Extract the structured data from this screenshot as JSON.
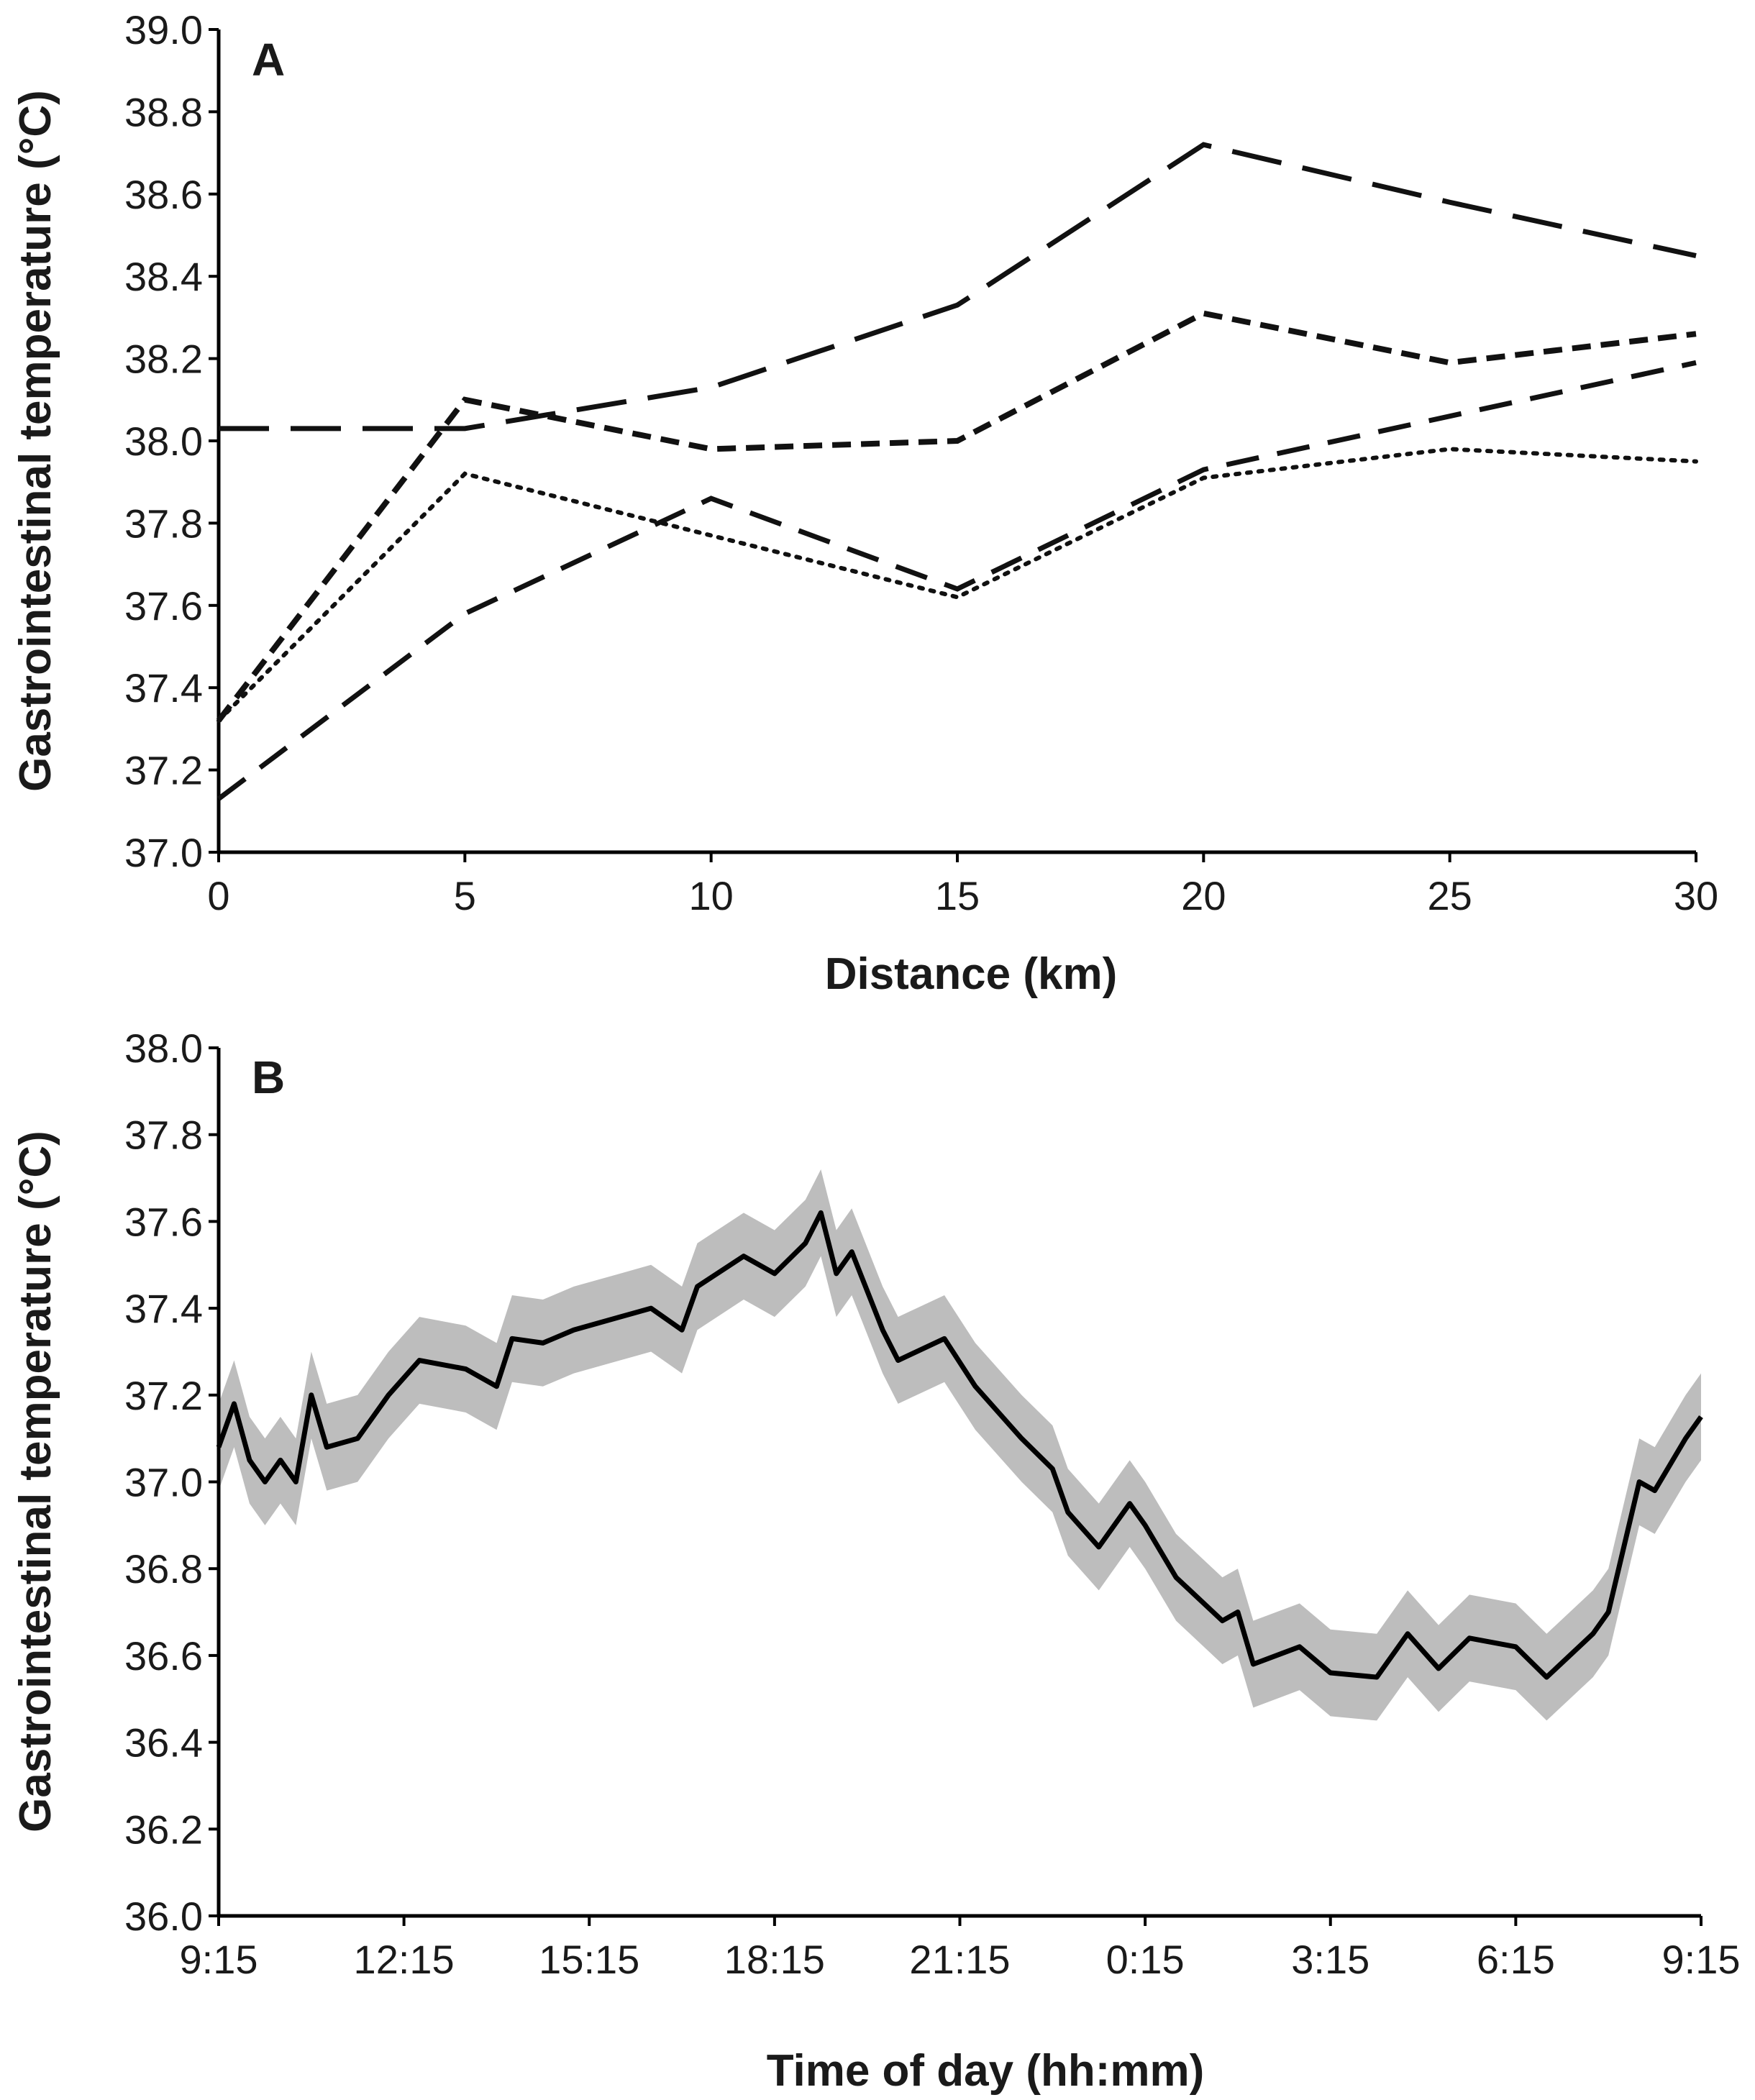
{
  "chart_data": [
    {
      "type": "line",
      "panel_label": "A",
      "xlabel": "Distance (km)",
      "ylabel": "Gastrointestinal temperature (°C)",
      "xlim": [
        0,
        30
      ],
      "ylim": [
        37.0,
        39.0
      ],
      "x": [
        0,
        5,
        10,
        15,
        20,
        25,
        30
      ],
      "xticks": [
        "0",
        "5",
        "10",
        "15",
        "20",
        "25",
        "30"
      ],
      "yticks": [
        "37.0",
        "37.2",
        "37.4",
        "37.6",
        "37.8",
        "38.0",
        "38.2",
        "38.4",
        "38.6",
        "38.8",
        "39.0"
      ],
      "grid": false,
      "series": [
        {
          "style": "long-dash",
          "values": [
            38.03,
            38.03,
            38.13,
            38.33,
            38.72,
            38.58,
            38.45
          ]
        },
        {
          "style": "short-dash",
          "values": [
            37.32,
            38.1,
            37.98,
            38.0,
            38.31,
            38.19,
            38.26
          ]
        },
        {
          "style": "dotted",
          "values": [
            37.32,
            37.92,
            37.77,
            37.62,
            37.91,
            37.98,
            37.95
          ]
        },
        {
          "style": "medium-dash",
          "values": [
            37.13,
            37.58,
            37.86,
            37.64,
            37.93,
            38.06,
            38.19
          ]
        }
      ]
    },
    {
      "type": "line",
      "panel_label": "B",
      "xlabel": "Time of day (hh:mm)",
      "ylabel": "Gastrointestinal temperature (°C)",
      "xlim": [
        "9:15",
        "9:15"
      ],
      "ylim": [
        36.0,
        38.0
      ],
      "xticks": [
        "9:15",
        "12:15",
        "15:15",
        "18:15",
        "21:15",
        "0:15",
        "3:15",
        "6:15",
        "9:15"
      ],
      "yticks": [
        "36.0",
        "36.2",
        "36.4",
        "36.6",
        "36.8",
        "37.0",
        "37.2",
        "37.4",
        "37.6",
        "37.8",
        "38.0"
      ],
      "grid": false,
      "line_color": "#000000",
      "band_color": "#bdbdbd",
      "band_halfwidth": 0.1,
      "points": [
        [
          "9:15",
          37.08
        ],
        [
          "9:30",
          37.18
        ],
        [
          "9:45",
          37.05
        ],
        [
          "10:00",
          37.0
        ],
        [
          "10:15",
          37.05
        ],
        [
          "10:30",
          37.0
        ],
        [
          "10:45",
          37.2
        ],
        [
          "11:00",
          37.08
        ],
        [
          "11:30",
          37.1
        ],
        [
          "12:00",
          37.2
        ],
        [
          "12:30",
          37.28
        ],
        [
          "13:15",
          37.26
        ],
        [
          "13:45",
          37.22
        ],
        [
          "14:00",
          37.33
        ],
        [
          "14:30",
          37.32
        ],
        [
          "15:00",
          37.35
        ],
        [
          "15:45",
          37.38
        ],
        [
          "16:15",
          37.4
        ],
        [
          "16:45",
          37.35
        ],
        [
          "17:00",
          37.45
        ],
        [
          "17:45",
          37.52
        ],
        [
          "18:15",
          37.48
        ],
        [
          "18:45",
          37.55
        ],
        [
          "19:00",
          37.62
        ],
        [
          "19:15",
          37.48
        ],
        [
          "19:30",
          37.53
        ],
        [
          "20:00",
          37.35
        ],
        [
          "20:15",
          37.28
        ],
        [
          "21:00",
          37.33
        ],
        [
          "21:30",
          37.22
        ],
        [
          "22:15",
          37.1
        ],
        [
          "22:45",
          37.03
        ],
        [
          "23:00",
          36.93
        ],
        [
          "23:30",
          36.85
        ],
        [
          "0:00",
          36.95
        ],
        [
          "0:15",
          36.9
        ],
        [
          "0:45",
          36.78
        ],
        [
          "1:30",
          36.68
        ],
        [
          "1:45",
          36.7
        ],
        [
          "2:00",
          36.58
        ],
        [
          "2:45",
          36.62
        ],
        [
          "3:15",
          36.56
        ],
        [
          "4:00",
          36.55
        ],
        [
          "4:30",
          36.65
        ],
        [
          "5:00",
          36.57
        ],
        [
          "5:30",
          36.64
        ],
        [
          "6:15",
          36.62
        ],
        [
          "6:45",
          36.55
        ],
        [
          "7:30",
          36.65
        ],
        [
          "7:45",
          36.7
        ],
        [
          "8:15",
          37.0
        ],
        [
          "8:30",
          36.98
        ],
        [
          "9:00",
          37.1
        ],
        [
          "9:15",
          37.15
        ]
      ]
    }
  ]
}
